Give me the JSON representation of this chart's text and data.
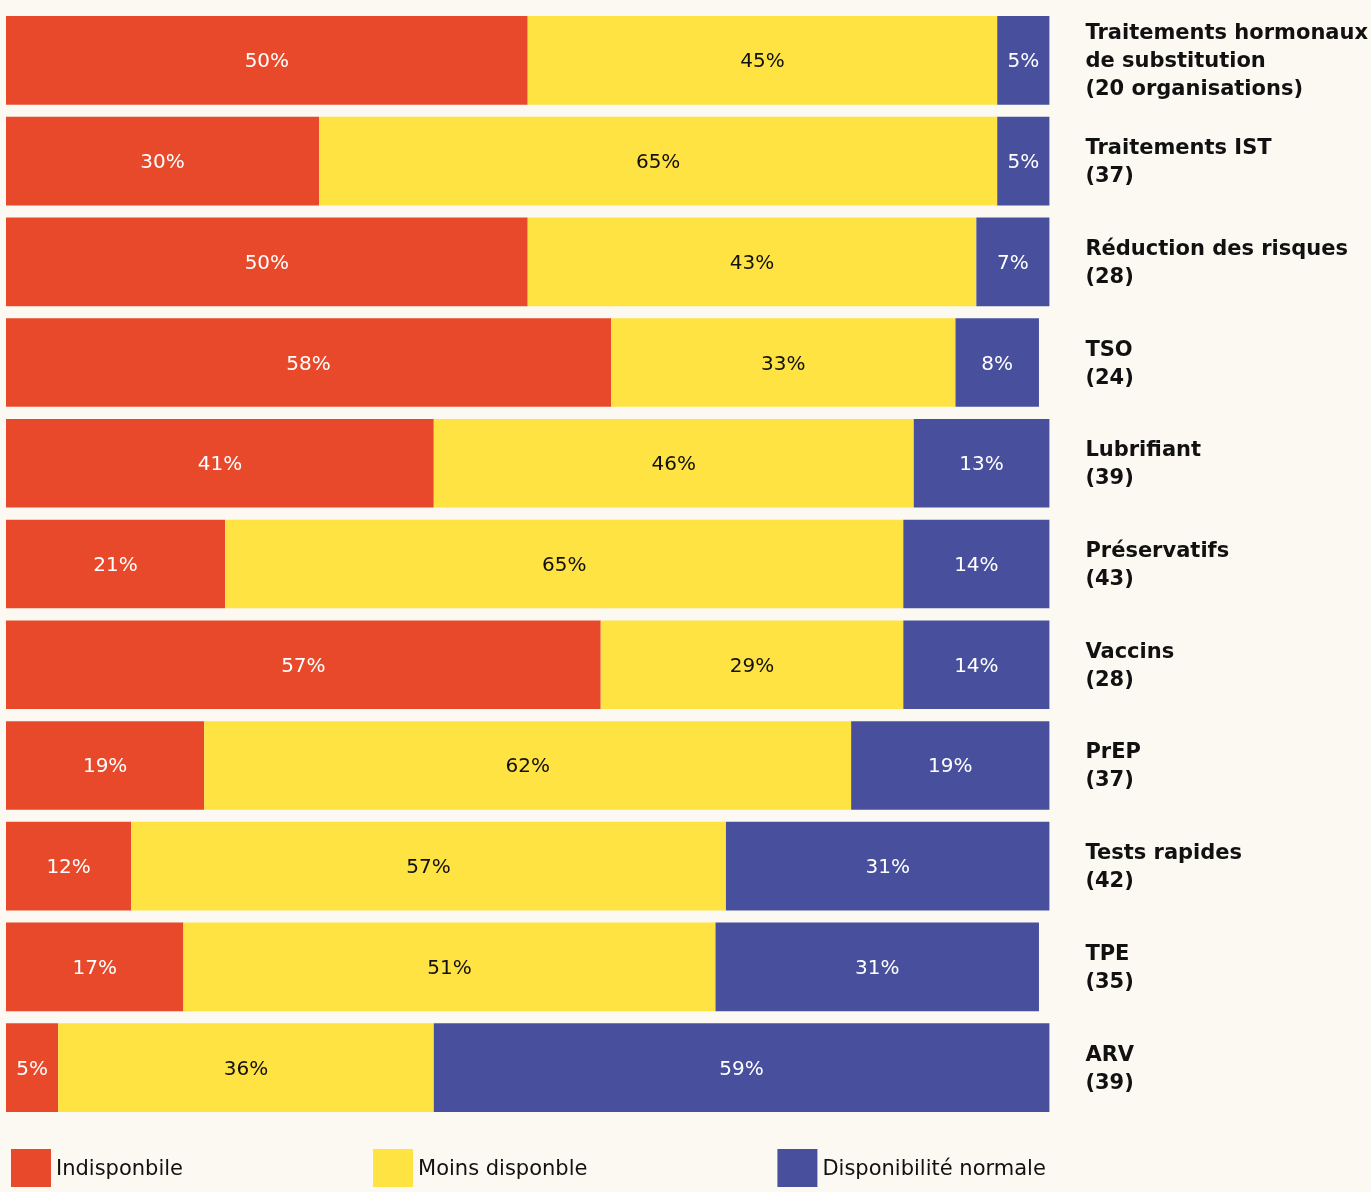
{
  "chart_data": {
    "type": "bar",
    "orientation": "horizontal",
    "stacked": true,
    "categories": [
      "Traitements hormonaux\nde substitution\n(20 organisations)",
      "Traitements IST\n(37)",
      "Réduction des risques\n(28)",
      "TSO\n(24)",
      "Lubrifiant\n(39)",
      "Préservatifs\n(43)",
      "Vaccins\n(28)",
      "PrEP\n(37)",
      "Tests rapides\n(42)",
      "TPE\n(35)",
      "ARV\n(39)"
    ],
    "series": [
      {
        "name": "Indisponbile",
        "color": "#e8492a",
        "values": [
          50,
          30,
          50,
          58,
          41,
          21,
          57,
          19,
          12,
          17,
          5
        ],
        "value_labels": [
          "50%",
          "30%",
          "50%",
          "58%",
          "41%",
          "21%",
          "57%",
          "19%",
          "12%",
          "17%",
          "5%"
        ]
      },
      {
        "name": "Moins disponble",
        "color": "#ffe343",
        "values": [
          45,
          65,
          43,
          33,
          46,
          65,
          29,
          62,
          57,
          51,
          36
        ],
        "value_labels": [
          "45%",
          "65%",
          "43%",
          "33%",
          "46%",
          "65%",
          "29%",
          "62%",
          "57%",
          "51%",
          "36%"
        ]
      },
      {
        "name": "Disponibilité normale",
        "color": "#48509e",
        "values": [
          5,
          5,
          7,
          8,
          13,
          14,
          14,
          19,
          31,
          31,
          59
        ],
        "value_labels": [
          "5%",
          "5%",
          "7%",
          "8%",
          "13%",
          "14%",
          "14%",
          "19%",
          "31%",
          "31%",
          "59%"
        ]
      }
    ],
    "xlim": [
      0,
      100
    ],
    "tick_labels": "y",
    "legend": "bottom"
  }
}
